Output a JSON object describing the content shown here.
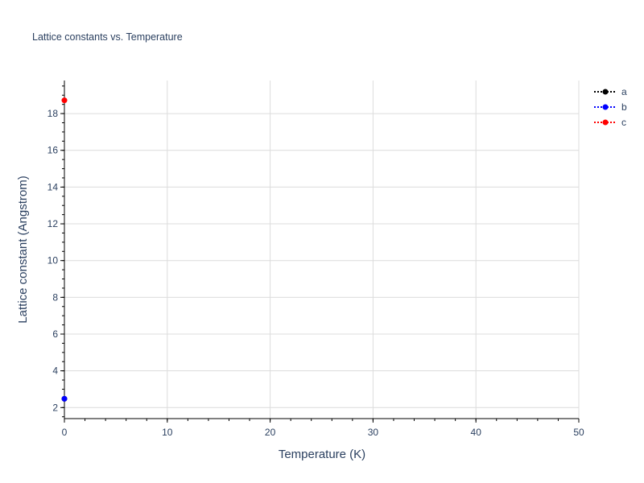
{
  "chart_data": {
    "type": "line",
    "title": "Lattice constants vs. Temperature",
    "xlabel": "Temperature (K)",
    "ylabel": "Lattice constant (Angstrom)",
    "xlim": [
      0,
      50
    ],
    "ylim": [
      1.4,
      19.8
    ],
    "xticks": [
      0,
      10,
      20,
      30,
      40,
      50
    ],
    "yticks": [
      2,
      4,
      6,
      8,
      10,
      12,
      14,
      16,
      18
    ],
    "grid": true,
    "legend_placement": "top-right",
    "series": [
      {
        "name": "a",
        "color": "#000000",
        "line_style": "dotted",
        "x": [
          0
        ],
        "y": [
          2.48
        ]
      },
      {
        "name": "b",
        "color": "#0000ff",
        "line_style": "dotted",
        "x": [
          0
        ],
        "y": [
          2.48
        ]
      },
      {
        "name": "c",
        "color": "#ff0000",
        "line_style": "dotted",
        "x": [
          0
        ],
        "y": [
          18.72
        ]
      }
    ]
  }
}
